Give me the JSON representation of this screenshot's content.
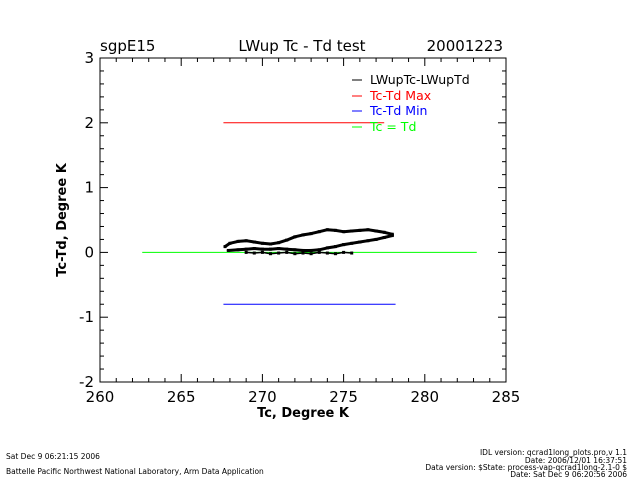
{
  "header": {
    "site": "sgpE15",
    "title": "LWup Tc - Td test",
    "date": "20001223"
  },
  "footer": {
    "run_date": "Sat Dec  9 06:21:15 2006",
    "institution": "Battelle Pacific Northwest National Laboratory, Arm Data Application",
    "idl_version": "IDL version: qcrad1long_plots.pro,v 1.1",
    "idl_date": "Date: 2006/12/01 16:37:51",
    "data_version": "Data version: $State: process-vap-qcrad1long-2.1-0 $",
    "data_date": "Date: Sat Dec  9 06:20:56 2006"
  },
  "colors": {
    "data": "#000000",
    "max": "#ff0000",
    "min": "#0000ff",
    "equal": "#00ff00"
  },
  "chart_data": {
    "type": "scatter",
    "title": "LWup Tc - Td test",
    "xlabel": "Tc, Degree K",
    "ylabel": "Tc-Td, Degree K",
    "xlim": [
      260,
      285
    ],
    "ylim": [
      -2,
      3
    ],
    "xticks": [
      "260",
      "265",
      "270",
      "275",
      "280",
      "285"
    ],
    "yticks": [
      "-2",
      "-1",
      "0",
      "1",
      "2",
      "3"
    ],
    "legend_position": "top-right",
    "legend": [
      {
        "label": "LWupTc-LWupTd",
        "color": "#000000"
      },
      {
        "label": "Tc-Td Max",
        "color": "#ff0000"
      },
      {
        "label": "Tc-Td Min",
        "color": "#0000ff"
      },
      {
        "label": "Tc = Td",
        "color": "#00ff00"
      }
    ],
    "reference_lines": [
      {
        "name": "Tc-Td Max",
        "x": [
          267.6,
          277.5
        ],
        "y": [
          2.0,
          2.0
        ],
        "color": "#ff0000"
      },
      {
        "name": "Tc-Td Min",
        "x": [
          267.6,
          278.2
        ],
        "y": [
          -0.8,
          -0.8
        ],
        "color": "#0000ff"
      },
      {
        "name": "Tc = Td",
        "x": [
          262.6,
          283.2
        ],
        "y": [
          0.0,
          0.0
        ],
        "color": "#00ff00"
      }
    ],
    "series": [
      {
        "name": "LWupTc-LWupTd (upper branch)",
        "x": [
          267.7,
          268.0,
          268.5,
          269.0,
          269.5,
          270.0,
          270.5,
          271.0,
          271.5,
          272.0,
          272.5,
          273.0,
          273.5,
          274.0,
          274.5,
          275.0,
          275.5,
          276.0,
          276.5,
          277.0,
          277.5,
          278.0
        ],
        "y": [
          0.09,
          0.14,
          0.17,
          0.18,
          0.16,
          0.14,
          0.13,
          0.15,
          0.19,
          0.24,
          0.27,
          0.29,
          0.32,
          0.35,
          0.34,
          0.32,
          0.33,
          0.34,
          0.35,
          0.33,
          0.31,
          0.28
        ]
      },
      {
        "name": "LWupTc-LWupTd (lower branch)",
        "x": [
          267.9,
          268.5,
          269.0,
          269.5,
          270.0,
          270.5,
          271.0,
          271.5,
          272.0,
          272.5,
          273.0,
          273.5,
          274.0,
          274.5,
          275.0,
          275.5,
          276.0,
          276.5,
          277.0,
          277.5,
          278.0
        ],
        "y": [
          0.03,
          0.04,
          0.05,
          0.06,
          0.05,
          0.05,
          0.06,
          0.05,
          0.04,
          0.03,
          0.03,
          0.04,
          0.07,
          0.09,
          0.12,
          0.14,
          0.16,
          0.18,
          0.2,
          0.23,
          0.26
        ]
      },
      {
        "name": "LWupTc-LWupTd (near zero)",
        "x": [
          269.0,
          269.5,
          270.0,
          270.5,
          271.0,
          271.5,
          272.0,
          272.5,
          273.0,
          273.5,
          274.0,
          274.5,
          275.0,
          275.5
        ],
        "y": [
          0.0,
          -0.01,
          0.0,
          -0.02,
          -0.01,
          0.0,
          -0.02,
          -0.01,
          -0.02,
          0.0,
          -0.01,
          -0.02,
          0.0,
          -0.01
        ]
      }
    ]
  }
}
